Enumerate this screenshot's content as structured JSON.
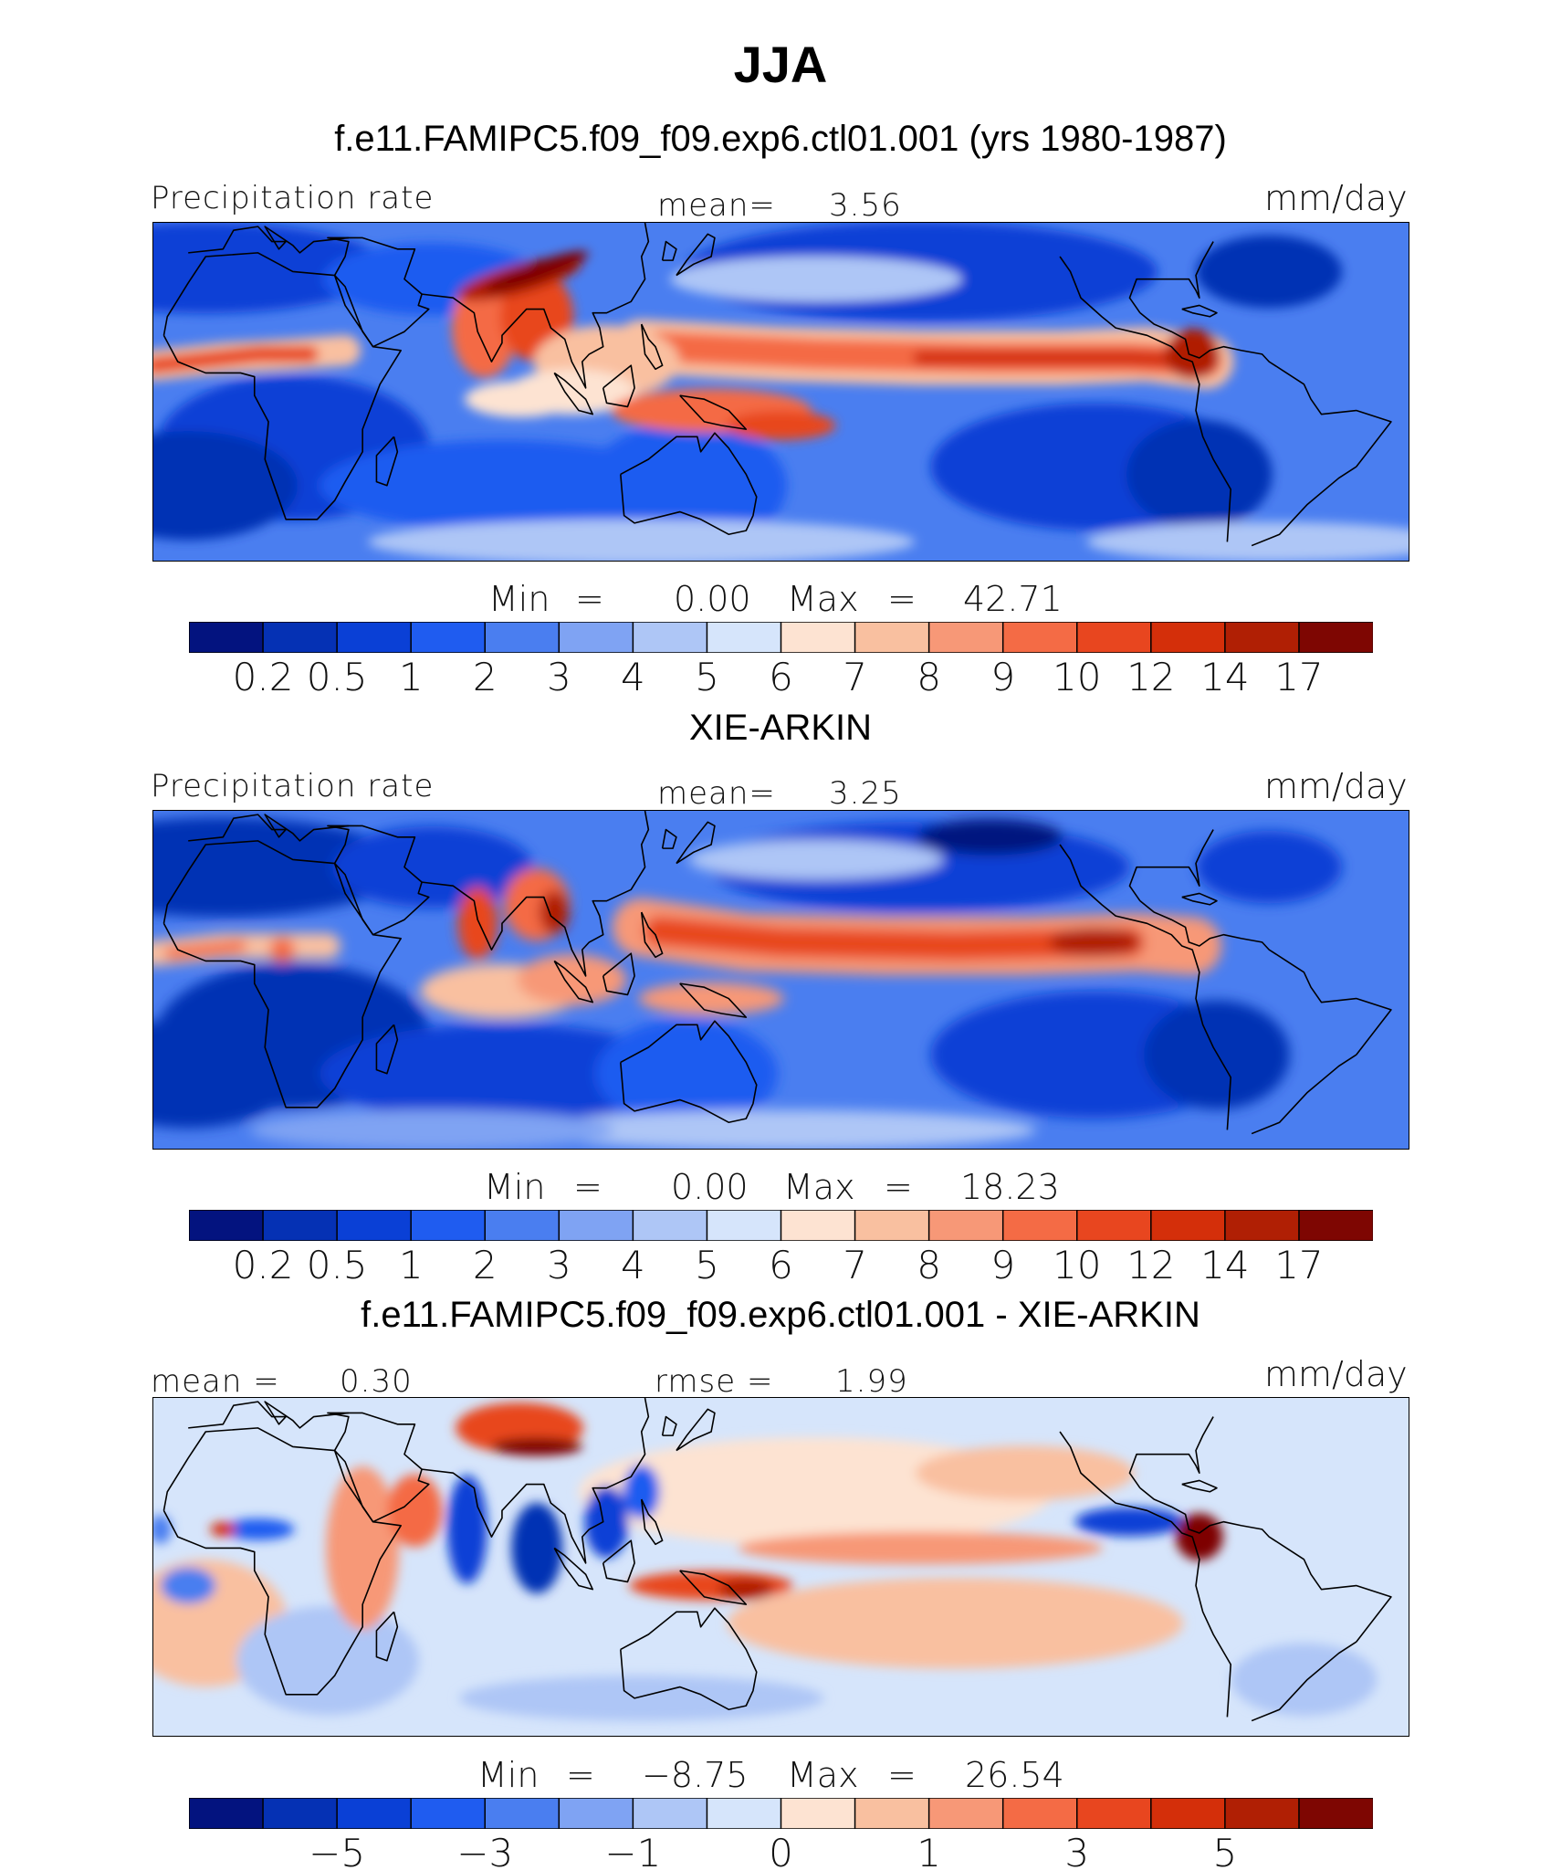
{
  "title": "JJA",
  "panels": [
    {
      "subtitle": "f.e11.FAMIPC5.f09_f09.exp6.ctl01.001 (yrs 1980-1987)",
      "left_label": "Precipitation rate",
      "center_label": "mean=",
      "center_value": "3.56",
      "units": "mm/day",
      "min_label": "Min",
      "eq1": "=",
      "min_value": "0.00",
      "max_label": "Max",
      "eq2": "=",
      "max_value": "42.71",
      "colorbar_ticks": [
        "0.2",
        "0.5",
        "1",
        "2",
        "3",
        "4",
        "5",
        "6",
        "7",
        "8",
        "9",
        "10",
        "12",
        "14",
        "17"
      ],
      "field": "model"
    },
    {
      "subtitle": "XIE-ARKIN",
      "left_label": "Precipitation rate",
      "center_label": "mean=",
      "center_value": "3.25",
      "units": "mm/day",
      "min_label": "Min",
      "eq1": "=",
      "min_value": "0.00",
      "max_label": "Max",
      "eq2": "=",
      "max_value": "18.23",
      "colorbar_ticks": [
        "0.2",
        "0.5",
        "1",
        "2",
        "3",
        "4",
        "5",
        "6",
        "7",
        "8",
        "9",
        "10",
        "12",
        "14",
        "17"
      ],
      "field": "obs"
    },
    {
      "subtitle": "f.e11.FAMIPC5.f09_f09.exp6.ctl01.001 - XIE-ARKIN",
      "left_label": "mean =",
      "left_value": "0.30",
      "center_label": "rmse =",
      "center_value": "1.99",
      "units": "mm/day",
      "min_label": "Min",
      "eq1": "=",
      "min_value": "−8.75",
      "max_label": "Max",
      "eq2": "=",
      "max_value": "26.54",
      "colorbar_ticks": [
        "−5",
        "−3",
        "−1",
        "0",
        "1",
        "3",
        "5"
      ],
      "field": "diff"
    }
  ],
  "colors": {
    "palette": [
      "#03137f",
      "#0531b4",
      "#0a40d6",
      "#1f5cf0",
      "#4a7ef0",
      "#7fa3f3",
      "#aec6f6",
      "#d6e5fb",
      "#fde3d2",
      "#f9c0a0",
      "#f79877",
      "#f46b45",
      "#e8461f",
      "#d42f0a",
      "#b01f04",
      "#7e0602"
    ],
    "coast": "#000000"
  }
}
